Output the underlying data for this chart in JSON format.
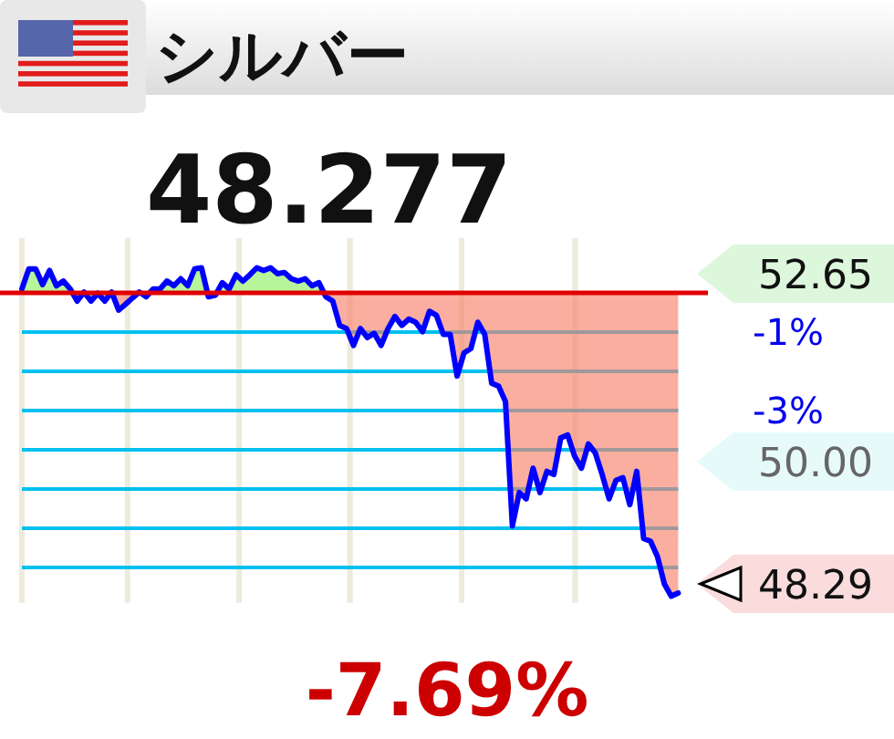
{
  "chart_data": {
    "type": "line",
    "title": "シルバー",
    "subtitle": "48.277",
    "categories": [
      null,
      null,
      null,
      null,
      null,
      null,
      null,
      null,
      null,
      null,
      null,
      null,
      null,
      null,
      null,
      null,
      null,
      null,
      null,
      null,
      null,
      null,
      null,
      null,
      null,
      null,
      null,
      null,
      null,
      null,
      null,
      null,
      null,
      null,
      null,
      null,
      null,
      null,
      null,
      null,
      null,
      null,
      null,
      null,
      null,
      null,
      null,
      null,
      null,
      null,
      null,
      null,
      null,
      null,
      null,
      null,
      null,
      null,
      null,
      null,
      null,
      null,
      null,
      null,
      null,
      null,
      null,
      null,
      null,
      null,
      null,
      null,
      null,
      null,
      null,
      null,
      null,
      null,
      null,
      null,
      null,
      null,
      null,
      null,
      null,
      null,
      null,
      null,
      null,
      null,
      null,
      null,
      null,
      null,
      null,
      null
    ],
    "series": [
      {
        "color": "#0000ff",
        "values": [
          0.1,
          0.61,
          0.61,
          0.21,
          0.57,
          0.18,
          0.3,
          0.1,
          -0.21,
          0.02,
          -0.21,
          -0.01,
          -0.21,
          0.02,
          -0.44,
          -0.29,
          -0.13,
          0.02,
          -0.1,
          0.1,
          0.1,
          0.3,
          0.18,
          0.36,
          0.18,
          0.61,
          0.64,
          -0.1,
          -0.06,
          0.26,
          0.1,
          0.46,
          0.3,
          0.46,
          0.64,
          0.57,
          0.64,
          0.49,
          0.52,
          0.36,
          0.3,
          0.36,
          0.18,
          0.26,
          -0.1,
          -0.21,
          -0.83,
          -0.91,
          -1.34,
          -0.91,
          -1.14,
          -1.03,
          -1.34,
          -0.91,
          -0.6,
          -0.83,
          -0.67,
          -0.75,
          -0.99,
          -0.47,
          -0.57,
          -1.06,
          -1.06,
          -2.12,
          -1.53,
          -1.42,
          -0.75,
          -1.06,
          -2.3,
          -2.38,
          -2.77,
          -5.94,
          -5.09,
          -5.25,
          -4.47,
          -5.09,
          -4.55,
          -4.63,
          -3.7,
          -3.62,
          -4.16,
          -4.47,
          -3.85,
          -4.08,
          -4.63,
          -5.25,
          -4.78,
          -4.71,
          -5.4,
          -4.55,
          -6.26,
          -6.33,
          -6.72,
          -7.42,
          -7.73,
          -7.65
        ]
      }
    ],
    "ylim": [
      -7.9,
      1.4
    ],
    "yticks": [
      {
        "value": -1,
        "label": "-1%"
      },
      {
        "value": -2,
        "label": null
      },
      {
        "value": -3,
        "label": "-3%"
      },
      {
        "value": -4,
        "label": null
      },
      {
        "value": -5,
        "label": null
      },
      {
        "value": -6,
        "label": null
      },
      {
        "value": -7,
        "label": null
      }
    ],
    "tick_labels": "y",
    "grid": true,
    "marker": "none",
    "line_style": "solid",
    "ref_lines": [
      {
        "axis": "y",
        "value": 0,
        "color": "#e00000"
      }
    ],
    "annotations": [
      "-7.69%",
      "52.65",
      "50.00",
      "48.29"
    ]
  }
}
